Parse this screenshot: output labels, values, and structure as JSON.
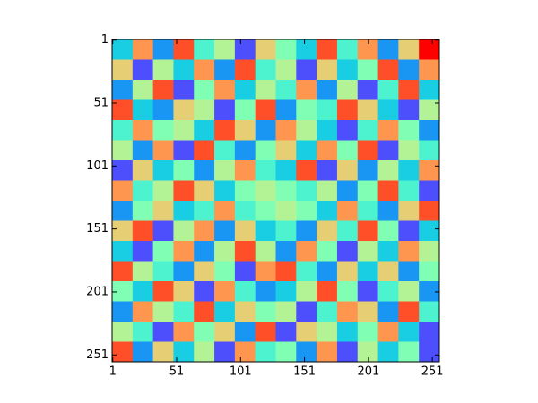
{
  "chart_data": {
    "type": "image",
    "colormap": "rainbow",
    "xlim": [
      0.5,
      256.5
    ],
    "ylim": [
      0.5,
      256.5
    ],
    "y_inverted": true,
    "xticks": [
      1,
      51,
      101,
      151,
      201,
      251
    ],
    "yticks": [
      1,
      51,
      101,
      151,
      201,
      251
    ],
    "z": [
      [
        0.3,
        0.8,
        0.2,
        0.9,
        0.4,
        0.6,
        0.1,
        0.7,
        0.5,
        0.3,
        0.9,
        0.4,
        0.8,
        0.2,
        0.7,
        1.0
      ],
      [
        0.7,
        0.1,
        0.6,
        0.3,
        0.8,
        0.2,
        0.9,
        0.4,
        0.6,
        0.1,
        0.7,
        0.3,
        0.5,
        0.9,
        0.2,
        0.8
      ],
      [
        0.2,
        0.6,
        0.9,
        0.1,
        0.5,
        0.8,
        0.3,
        0.6,
        0.4,
        0.8,
        0.2,
        0.6,
        0.1,
        0.4,
        0.9,
        0.3
      ],
      [
        0.9,
        0.3,
        0.2,
        0.7,
        0.6,
        0.1,
        0.5,
        0.9,
        0.2,
        0.5,
        0.4,
        0.9,
        0.7,
        0.3,
        0.1,
        0.6
      ],
      [
        0.4,
        0.8,
        0.5,
        0.6,
        0.3,
        0.9,
        0.7,
        0.2,
        0.8,
        0.6,
        0.3,
        0.1,
        0.4,
        0.8,
        0.5,
        0.2
      ],
      [
        0.6,
        0.2,
        0.8,
        0.1,
        0.9,
        0.4,
        0.2,
        0.5,
        0.7,
        0.3,
        0.8,
        0.5,
        0.9,
        0.1,
        0.6,
        0.4
      ],
      [
        0.1,
        0.7,
        0.3,
        0.5,
        0.2,
        0.6,
        0.8,
        0.4,
        0.3,
        0.9,
        0.1,
        0.7,
        0.2,
        0.6,
        0.3,
        0.8
      ],
      [
        0.8,
        0.4,
        0.6,
        0.9,
        0.7,
        0.3,
        0.5,
        0.6,
        0.5,
        0.4,
        0.6,
        0.2,
        0.5,
        0.9,
        0.4,
        0.1
      ],
      [
        0.2,
        0.5,
        0.7,
        0.3,
        0.4,
        0.8,
        0.4,
        0.5,
        0.6,
        0.5,
        0.3,
        0.8,
        0.4,
        0.2,
        0.7,
        0.9
      ],
      [
        0.7,
        0.9,
        0.1,
        0.6,
        0.8,
        0.2,
        0.7,
        0.3,
        0.4,
        0.2,
        0.7,
        0.4,
        0.9,
        0.5,
        0.1,
        0.3
      ],
      [
        0.3,
        0.1,
        0.5,
        0.8,
        0.2,
        0.6,
        0.9,
        0.6,
        0.2,
        0.8,
        0.5,
        0.1,
        0.6,
        0.3,
        0.8,
        0.6
      ],
      [
        0.9,
        0.6,
        0.4,
        0.2,
        0.7,
        0.5,
        0.1,
        0.8,
        0.9,
        0.4,
        0.2,
        0.7,
        0.3,
        0.7,
        0.2,
        0.5
      ],
      [
        0.5,
        0.3,
        0.9,
        0.7,
        0.1,
        0.8,
        0.4,
        0.2,
        0.3,
        0.6,
        0.9,
        0.5,
        0.1,
        0.4,
        0.6,
        0.2
      ],
      [
        0.2,
        0.8,
        0.6,
        0.4,
        0.9,
        0.3,
        0.7,
        0.5,
        0.6,
        0.1,
        0.4,
        0.8,
        0.7,
        0.2,
        0.9,
        0.4
      ],
      [
        0.6,
        0.4,
        0.1,
        0.8,
        0.5,
        0.7,
        0.2,
        0.9,
        0.1,
        0.7,
        0.6,
        0.3,
        0.5,
        0.8,
        0.3,
        0.1
      ],
      [
        0.9,
        0.2,
        0.7,
        0.3,
        0.6,
        0.1,
        0.8,
        0.4,
        0.5,
        0.2,
        0.8,
        0.1,
        0.6,
        0.3,
        0.5,
        0.1
      ]
    ]
  }
}
